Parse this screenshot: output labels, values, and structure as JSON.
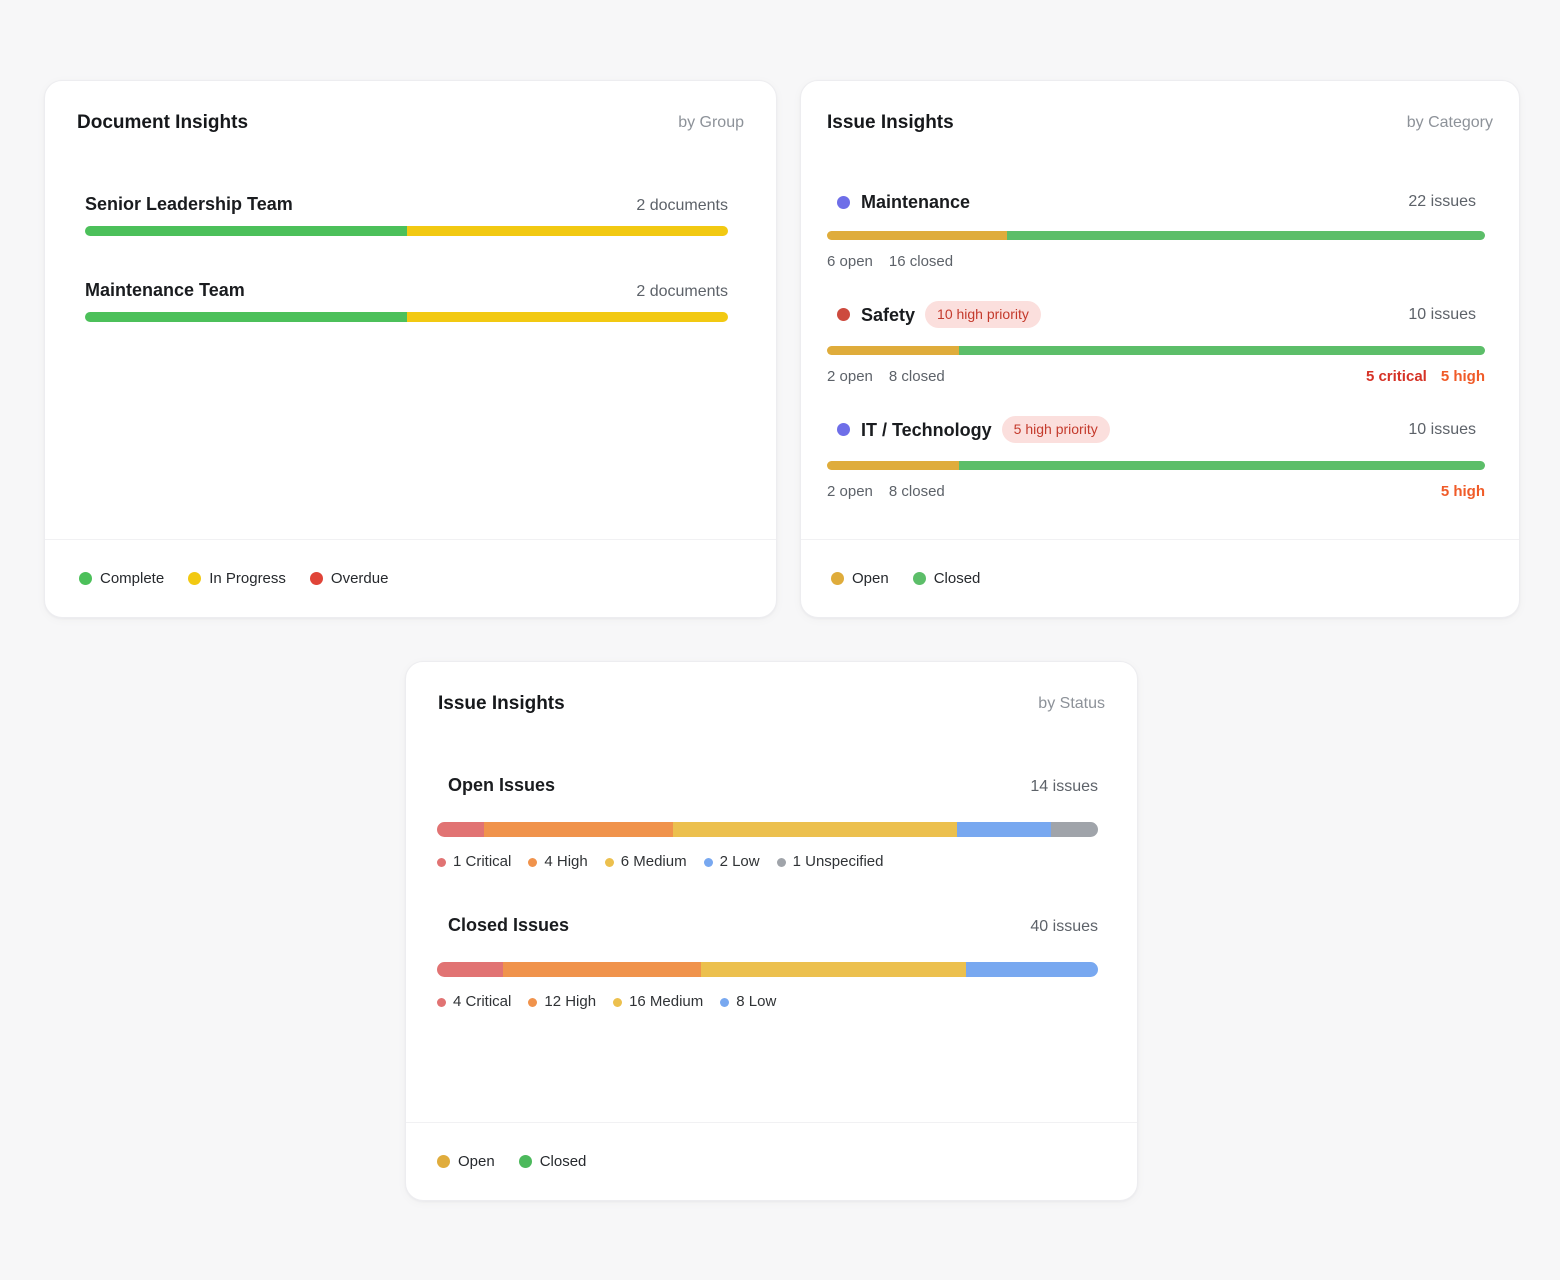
{
  "cards": {
    "documents": {
      "title": "Document Insights",
      "subtitle": "by Group",
      "rows": [
        {
          "label": "Senior Leadership Team",
          "count": "2 documents",
          "segments": [
            {
              "label": "Complete",
              "color": "#4cc05a",
              "pct": 50
            },
            {
              "label": "In Progress",
              "color": "#f2c912",
              "pct": 50
            }
          ]
        },
        {
          "label": "Maintenance Team",
          "count": "2 documents",
          "segments": [
            {
              "label": "Complete",
              "color": "#4cc05a",
              "pct": 50
            },
            {
              "label": "In Progress",
              "color": "#f2c912",
              "pct": 50
            }
          ]
        }
      ],
      "legend": [
        {
          "label": "Complete",
          "color": "#4cc05a"
        },
        {
          "label": "In Progress",
          "color": "#f2c912"
        },
        {
          "label": "Overdue",
          "color": "#e04438"
        }
      ]
    },
    "issues_by_category": {
      "title": "Issue Insights",
      "subtitle": "by Category",
      "rows": [
        {
          "label": "Maintenance",
          "dot_color": "#6e6ee8",
          "badge": "",
          "count": "22 issues",
          "segments": [
            {
              "label": "Open",
              "color": "#dfac3b",
              "pct": 27.3
            },
            {
              "label": "Closed",
              "color": "#5cbe69",
              "pct": 72.7
            }
          ],
          "stats_left": [
            "6 open",
            "16 closed"
          ],
          "stats_right": []
        },
        {
          "label": "Safety",
          "dot_color": "#cd4a3e",
          "badge": "10 high priority",
          "count": "10 issues",
          "segments": [
            {
              "label": "Open",
              "color": "#dfac3b",
              "pct": 20
            },
            {
              "label": "Closed",
              "color": "#5cbe69",
              "pct": 80
            }
          ],
          "stats_left": [
            "2 open",
            "8 closed"
          ],
          "stats_right": [
            {
              "text": "5 critical",
              "color": "#d63226"
            },
            {
              "text": "5 high",
              "color": "#f05b28"
            }
          ]
        },
        {
          "label": "IT / Technology",
          "dot_color": "#6e6ee8",
          "badge": "5 high priority",
          "count": "10 issues",
          "segments": [
            {
              "label": "Open",
              "color": "#dfac3b",
              "pct": 20
            },
            {
              "label": "Closed",
              "color": "#5cbe69",
              "pct": 80
            }
          ],
          "stats_left": [
            "2 open",
            "8 closed"
          ],
          "stats_right": [
            {
              "text": "5 high",
              "color": "#f05b28"
            }
          ]
        }
      ],
      "legend": [
        {
          "label": "Open",
          "color": "#dfac3b"
        },
        {
          "label": "Closed",
          "color": "#5cbe69"
        }
      ]
    },
    "issues_by_status": {
      "title": "Issue Insights",
      "subtitle": "by Status",
      "sections": [
        {
          "label": "Open Issues",
          "count": "14 issues",
          "segments": [
            {
              "label": "1 Critical",
              "color": "#e17373",
              "pct": 7.1
            },
            {
              "label": "4 High",
              "color": "#f0934c",
              "pct": 28.6
            },
            {
              "label": "6 Medium",
              "color": "#ecc04e",
              "pct": 42.9
            },
            {
              "label": "2 Low",
              "color": "#78a8f0",
              "pct": 14.3
            },
            {
              "label": "1 Unspecified",
              "color": "#a0a4aa",
              "pct": 7.1
            }
          ]
        },
        {
          "label": "Closed Issues",
          "count": "40 issues",
          "segments": [
            {
              "label": "4 Critical",
              "color": "#e17373",
              "pct": 10
            },
            {
              "label": "12 High",
              "color": "#f0934c",
              "pct": 30
            },
            {
              "label": "16 Medium",
              "color": "#ecc04e",
              "pct": 40
            },
            {
              "label": "8 Low",
              "color": "#78a8f0",
              "pct": 20
            }
          ]
        }
      ],
      "legend": [
        {
          "label": "Open",
          "color": "#e0ac3c"
        },
        {
          "label": "Closed",
          "color": "#4cb95c"
        }
      ]
    }
  },
  "chart_data": [
    {
      "type": "bar",
      "title": "Document Insights by Group",
      "categories": [
        "Senior Leadership Team",
        "Maintenance Team"
      ],
      "series": [
        {
          "name": "Complete",
          "values": [
            1,
            1
          ]
        },
        {
          "name": "In Progress",
          "values": [
            1,
            1
          ]
        },
        {
          "name": "Overdue",
          "values": [
            0,
            0
          ]
        }
      ],
      "totals": [
        2,
        2
      ],
      "total_labels": [
        "2 documents",
        "2 documents"
      ],
      "legend_position": "bottom"
    },
    {
      "type": "bar",
      "title": "Issue Insights by Category",
      "categories": [
        "Maintenance",
        "Safety",
        "IT / Technology"
      ],
      "series": [
        {
          "name": "Open",
          "values": [
            6,
            2,
            2
          ]
        },
        {
          "name": "Closed",
          "values": [
            16,
            8,
            8
          ]
        }
      ],
      "totals": [
        22,
        10,
        10
      ],
      "total_labels": [
        "22 issues",
        "10 issues",
        "10 issues"
      ],
      "annotations": [
        {
          "category": "Safety",
          "badge": "10 high priority",
          "notes": [
            "5 critical",
            "5 high"
          ]
        },
        {
          "category": "IT / Technology",
          "badge": "5 high priority",
          "notes": [
            "5 high"
          ]
        }
      ],
      "legend_position": "bottom"
    },
    {
      "type": "bar",
      "title": "Issue Insights by Status",
      "categories": [
        "Open Issues",
        "Closed Issues"
      ],
      "series": [
        {
          "name": "Critical",
          "values": [
            1,
            4
          ]
        },
        {
          "name": "High",
          "values": [
            4,
            12
          ]
        },
        {
          "name": "Medium",
          "values": [
            6,
            16
          ]
        },
        {
          "name": "Low",
          "values": [
            2,
            8
          ]
        },
        {
          "name": "Unspecified",
          "values": [
            1,
            0
          ]
        }
      ],
      "totals": [
        14,
        40
      ],
      "total_labels": [
        "14 issues",
        "40 issues"
      ],
      "legend_position": "bottom"
    }
  ]
}
